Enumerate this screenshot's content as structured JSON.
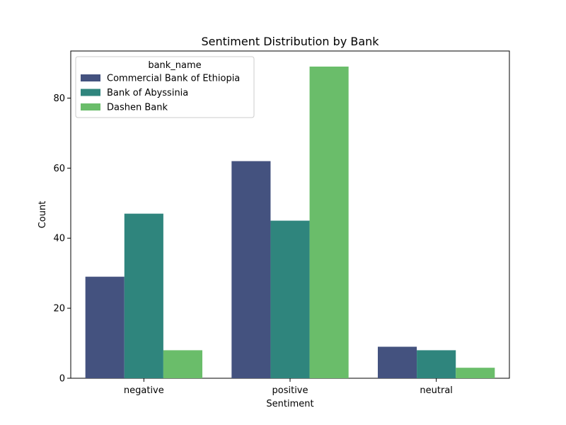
{
  "chart_data": {
    "type": "bar",
    "title": "Sentiment Distribution by Bank",
    "xlabel": "Sentiment",
    "ylabel": "Count",
    "categories": [
      "negative",
      "positive",
      "neutral"
    ],
    "series": [
      {
        "name": "Commercial Bank of Ethiopia",
        "values": [
          29,
          62,
          9
        ],
        "color": "#44527f"
      },
      {
        "name": "Bank of Abyssinia",
        "values": [
          47,
          45,
          8
        ],
        "color": "#2f857d"
      },
      {
        "name": "Dashen Bank",
        "values": [
          8,
          89,
          3
        ],
        "color": "#6abd6a"
      }
    ],
    "ylim": [
      0,
      93.45
    ],
    "yticks": [
      0,
      20,
      40,
      60,
      80
    ],
    "legend": {
      "title": "bank_name",
      "placement": "top-left"
    },
    "grid": false
  }
}
